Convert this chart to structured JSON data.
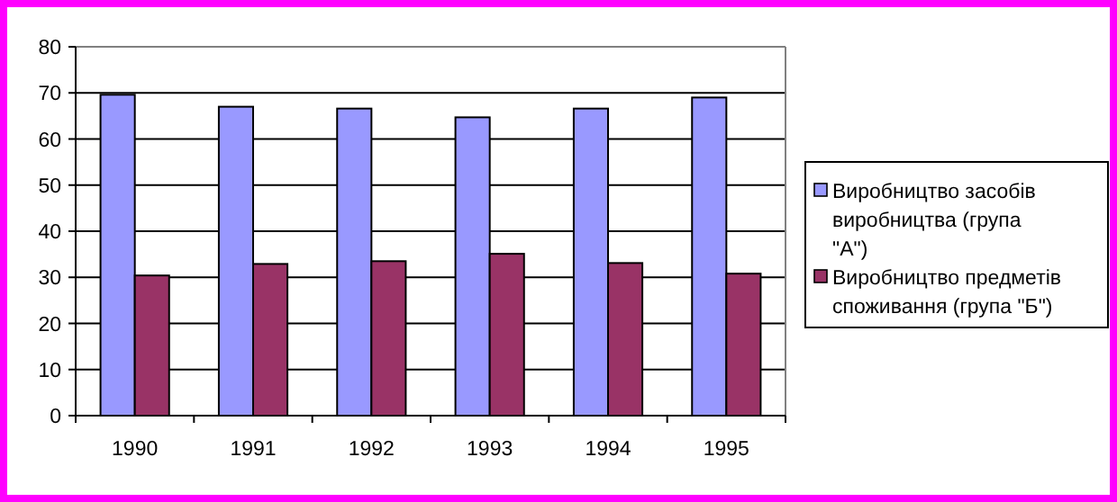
{
  "chart_data": {
    "type": "bar",
    "categories": [
      "1990",
      "1991",
      "1992",
      "1993",
      "1994",
      "1995"
    ],
    "series": [
      {
        "name": "Виробництво засобів виробництва (група \"А\")",
        "color": "#9999ff",
        "values": [
          69.6,
          67.0,
          66.6,
          64.7,
          66.6,
          69.0
        ]
      },
      {
        "name": "Виробництво предметів споживання (група \"Б\")",
        "color": "#993366",
        "values": [
          30.4,
          32.9,
          33.5,
          35.1,
          33.1,
          30.8
        ]
      }
    ],
    "ylim": [
      0,
      80
    ],
    "yticks": [
      0,
      10,
      20,
      30,
      40,
      50,
      60,
      70,
      80
    ],
    "grid": "y",
    "legend": "right"
  }
}
